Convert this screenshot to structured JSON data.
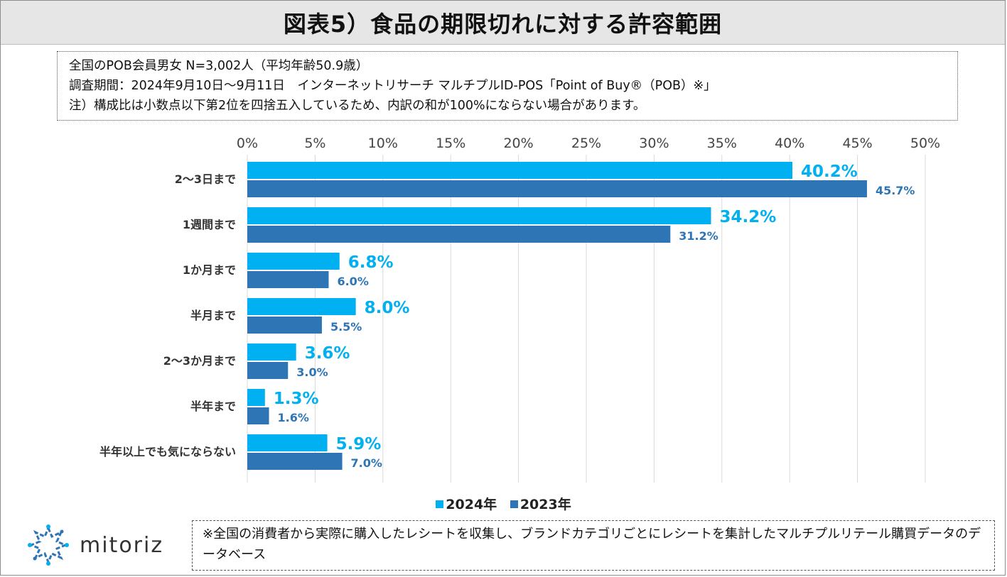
{
  "title": "図表5）食品の期限切れに対する許容範囲",
  "notes": [
    "全国のPOB会員男女 N=3,002人（平均年齢50.9歳）",
    "調査期間：2024年9月10日～9月11日　インターネットリサーチ マルチプルID-POS「Point of Buy®（POB）※」",
    "注）構成比は小数点以下第2位を四捨五入しているため、内訳の和が100%にならない場合があります。"
  ],
  "footnote": "※全国の消費者から実際に購入したレシートを収集し、ブランドカテゴリごとにレシートを集計したマルチプルリテール購買データのデータベース",
  "logo": {
    "text": "mitoriz"
  },
  "colors": {
    "s2024": "#00b0f0",
    "s2023": "#2e75b6",
    "grid": "#d9d9d9"
  },
  "chart_data": {
    "type": "bar",
    "orientation": "horizontal",
    "title": "図表5）食品の期限切れに対する許容範囲",
    "categories": [
      "2～3日まで",
      "1週間まで",
      "1か月まで",
      "半月まで",
      "2～3か月まで",
      "半年まで",
      "半年以上でも気にならない"
    ],
    "series": [
      {
        "name": "2024年",
        "values": [
          40.2,
          34.2,
          6.8,
          8.0,
          3.6,
          1.3,
          5.9
        ],
        "labels": [
          "40.2%",
          "34.2%",
          "6.8%",
          "8.0%",
          "3.6%",
          "1.3%",
          "5.9%"
        ]
      },
      {
        "name": "2023年",
        "values": [
          45.7,
          31.2,
          6.0,
          5.5,
          3.0,
          1.6,
          7.0
        ],
        "labels": [
          "45.7%",
          "31.2%",
          "6.0%",
          "5.5%",
          "3.0%",
          "1.6%",
          "7.0%"
        ]
      }
    ],
    "xlim": [
      0,
      50
    ],
    "ticks": [
      0,
      5,
      10,
      15,
      20,
      25,
      30,
      35,
      40,
      45,
      50
    ],
    "tick_labels": [
      "0%",
      "5%",
      "10%",
      "15%",
      "20%",
      "25%",
      "30%",
      "35%",
      "40%",
      "45%",
      "50%"
    ],
    "grid": true,
    "legend_position": "bottom"
  }
}
